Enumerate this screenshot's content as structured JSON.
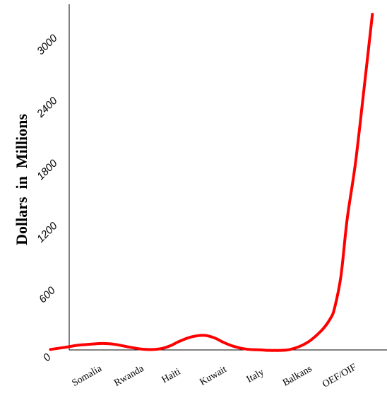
{
  "chart_data": {
    "type": "line",
    "title": "",
    "xlabel": "",
    "ylabel": "Dollars  in  Millions",
    "categories": [
      "Somalia",
      "Rwanda",
      "Haiti",
      "Kuwait",
      "Italy",
      "Balkans",
      "OEF/OIF"
    ],
    "y_ticks": [
      "0",
      "600",
      "1200",
      "1800",
      "2400",
      "3000"
    ],
    "ylim": [
      0,
      3200
    ],
    "grid": false,
    "series": [
      {
        "color": "#ff0000",
        "x": [
          -0.9,
          -0.55,
          -0.25,
          0.05,
          0.35,
          0.65,
          1.0,
          1.35,
          1.7,
          1.95,
          2.15,
          2.45,
          2.75,
          3.0,
          3.2,
          3.45,
          3.75,
          4.1,
          4.4,
          4.8,
          5.2,
          5.55,
          5.75,
          5.85,
          6.0,
          6.15,
          6.35,
          6.55,
          6.75
        ],
        "values": [
          5,
          25,
          45,
          55,
          62,
          52,
          25,
          5,
          10,
          40,
          80,
          125,
          140,
          115,
          75,
          35,
          8,
          0,
          -5,
          5,
          70,
          190,
          300,
          400,
          700,
          1250,
          1800,
          2500,
          3220
        ]
      }
    ]
  }
}
